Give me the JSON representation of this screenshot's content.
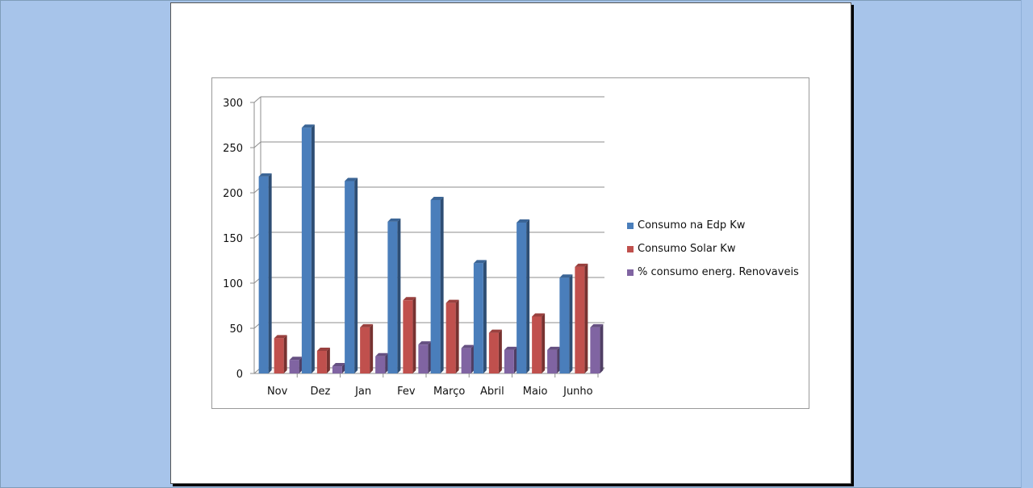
{
  "colors": {
    "workspace": "#a7c4ea",
    "page": "#ffffff"
  },
  "chart_data": {
    "type": "bar",
    "categories": [
      "Nov",
      "Dez",
      "Jan",
      "Fev",
      "Março",
      "Abril",
      "Maio",
      "Junho"
    ],
    "series": [
      {
        "name": "Consumo na Edp Kw",
        "color": "#4a7ebb",
        "values": [
          218,
          272,
          213,
          168,
          192,
          122,
          167,
          106
        ]
      },
      {
        "name": "Consumo Solar Kw",
        "color": "#c0504d",
        "values": [
          39,
          25,
          51,
          81,
          78,
          45,
          63,
          118
        ]
      },
      {
        "name": "% consumo energ. Renovaveis",
        "color": "#8064a2",
        "values": [
          15,
          8,
          19,
          32,
          28,
          26,
          26,
          51
        ]
      }
    ],
    "yticks": [
      0,
      50,
      100,
      150,
      200,
      250,
      300
    ],
    "ylim": [
      0,
      300
    ],
    "grid": true,
    "legend_position": "right",
    "style": "3d-clustered-column"
  }
}
